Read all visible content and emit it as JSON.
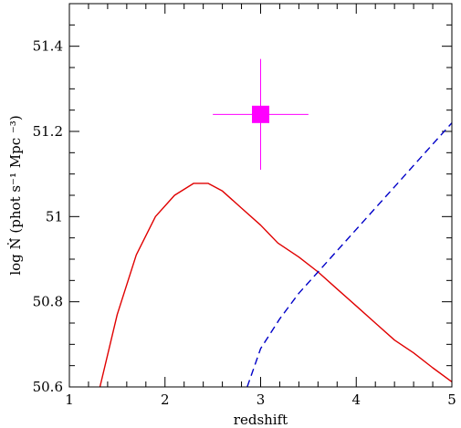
{
  "chart_data": {
    "type": "line",
    "xlabel": "redshift",
    "ylabel": "log Ṅ́ (phot s⁻¹ Mpc ⁻³)",
    "xlim": [
      1,
      5
    ],
    "ylim": [
      50.6,
      51.5
    ],
    "x_ticks": [
      1,
      2,
      3,
      4,
      5
    ],
    "x_tick_labels": [
      "1",
      "2",
      "3",
      "4",
      "5"
    ],
    "y_ticks": [
      50.6,
      50.8,
      51.0,
      51.2,
      51.4
    ],
    "y_tick_labels": [
      "50.6",
      "50.8",
      "51",
      "51.2",
      "51.4"
    ],
    "grid": false,
    "series": [
      {
        "style": "solid",
        "color": "#e00000",
        "points": [
          [
            1.32,
            50.6
          ],
          [
            1.5,
            50.77
          ],
          [
            1.7,
            50.91
          ],
          [
            1.9,
            51.0
          ],
          [
            2.1,
            51.05
          ],
          [
            2.3,
            51.078
          ],
          [
            2.45,
            51.078
          ],
          [
            2.6,
            51.06
          ],
          [
            2.8,
            51.02
          ],
          [
            3.0,
            50.98
          ],
          [
            3.18,
            50.938
          ],
          [
            3.4,
            50.905
          ],
          [
            3.6,
            50.87
          ],
          [
            3.8,
            50.83
          ],
          [
            4.0,
            50.79
          ],
          [
            4.2,
            50.75
          ],
          [
            4.4,
            50.71
          ],
          [
            4.6,
            50.68
          ],
          [
            4.8,
            50.645
          ],
          [
            5.0,
            50.612
          ]
        ]
      },
      {
        "style": "dashed",
        "color": "#0000c8",
        "points": [
          [
            2.86,
            50.6
          ],
          [
            3.0,
            50.69
          ],
          [
            3.2,
            50.76
          ],
          [
            3.4,
            50.82
          ],
          [
            3.6,
            50.87
          ],
          [
            3.8,
            50.92
          ],
          [
            4.0,
            50.97
          ],
          [
            4.2,
            51.02
          ],
          [
            4.4,
            51.07
          ],
          [
            4.6,
            51.12
          ],
          [
            4.8,
            51.17
          ],
          [
            5.0,
            51.22
          ]
        ]
      }
    ],
    "data_point": {
      "x": 3.0,
      "y": 51.24,
      "x_err": [
        2.5,
        3.5
      ],
      "y_err": [
        51.11,
        51.37
      ],
      "color": "#ff00ff",
      "marker": "square"
    }
  }
}
